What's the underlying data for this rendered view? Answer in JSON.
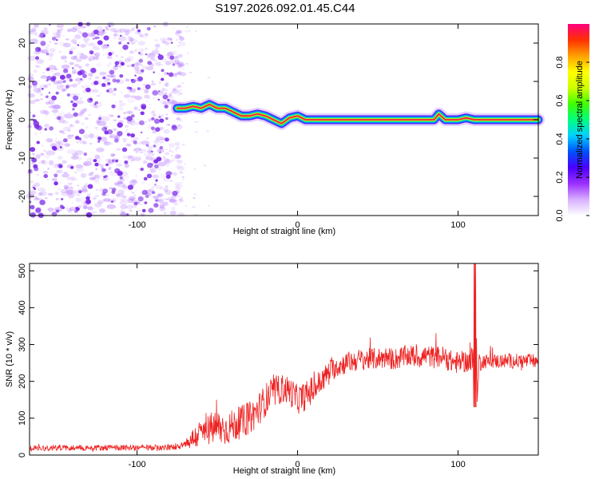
{
  "title": "S197.2026.092.01.45.C44",
  "colors": {
    "snr_line": "#ee2222",
    "ridge_line": "#e8214a",
    "noise_speckle": "#7a28e8",
    "background": "#ffffff"
  },
  "chart_data": [
    {
      "type": "heatmap",
      "xlabel": "Height of straight line (km)",
      "ylabel": "Frequency (Hz)",
      "xlim": [
        -167,
        150
      ],
      "ylim": [
        -25,
        25
      ],
      "x_ticks": [
        -100,
        0,
        100
      ],
      "y_ticks": [
        -20,
        -10,
        0,
        10,
        20
      ],
      "grid": false,
      "colorbar": {
        "label": "Normalized spectral amplitude",
        "range": [
          0,
          1
        ],
        "ticks": [
          0.0,
          0.2,
          0.4,
          0.6,
          0.8
        ],
        "colormap": [
          "#ffffff",
          "#d8b0ff",
          "#9b30ff",
          "#4b00ff",
          "#0050ff",
          "#00d0ff",
          "#00ff80",
          "#40ff00",
          "#d0ff00",
          "#ffff00",
          "#ffa000",
          "#ff3000",
          "#ff0080"
        ]
      },
      "noise_region_x": [
        -167,
        -75
      ],
      "ridge": {
        "x": [
          -75,
          -70,
          -65,
          -60,
          -55,
          -50,
          -45,
          -40,
          -35,
          -30,
          -25,
          -20,
          -15,
          -10,
          -5,
          0,
          5,
          10,
          20,
          40,
          60,
          80,
          85,
          88,
          92,
          96,
          100,
          105,
          110,
          130,
          150
        ],
        "freq": [
          3,
          3,
          3.5,
          3,
          4,
          3,
          3,
          2,
          1,
          1,
          1.5,
          1,
          0,
          -1,
          0.5,
          1,
          0,
          0,
          0,
          0,
          0,
          0,
          0,
          1.5,
          0,
          0,
          0,
          0.5,
          0,
          0,
          0
        ]
      }
    },
    {
      "type": "line",
      "xlabel": "Height of straight line (km)",
      "ylabel": "SNR (10 * v/v)",
      "xlim": [
        -167,
        150
      ],
      "ylim": [
        0,
        520
      ],
      "x_ticks": [
        -100,
        0,
        100
      ],
      "y_ticks": [
        0,
        100,
        200,
        300,
        400,
        500
      ],
      "grid": false,
      "series": [
        {
          "x": [
            -167,
            -150,
            -130,
            -110,
            -90,
            -80,
            -75,
            -70,
            -65,
            -60,
            -55,
            -50,
            -45,
            -40,
            -35,
            -30,
            -25,
            -20,
            -15,
            -10,
            -5,
            0,
            5,
            10,
            15,
            20,
            25,
            30,
            35,
            40,
            45,
            50,
            55,
            60,
            65,
            70,
            75,
            80,
            85,
            90,
            95,
            100,
            105,
            108,
            110,
            111,
            112,
            113,
            115,
            120,
            130,
            140,
            150
          ],
          "y": [
            18,
            20,
            20,
            20,
            20,
            20,
            25,
            30,
            45,
            60,
            70,
            75,
            70,
            80,
            90,
            100,
            120,
            150,
            170,
            180,
            175,
            150,
            160,
            180,
            200,
            230,
            240,
            250,
            255,
            260,
            260,
            262,
            265,
            260,
            265,
            270,
            265,
            270,
            265,
            268,
            255,
            250,
            255,
            250,
            260,
            500,
            140,
            250,
            255,
            255,
            255,
            255,
            255
          ],
          "noise_amp": [
            8,
            8,
            8,
            8,
            8,
            8,
            10,
            15,
            30,
            40,
            45,
            50,
            45,
            45,
            45,
            45,
            45,
            45,
            45,
            40,
            40,
            40,
            40,
            40,
            35,
            30,
            30,
            30,
            30,
            30,
            30,
            30,
            30,
            30,
            30,
            30,
            30,
            30,
            30,
            30,
            30,
            30,
            30,
            40,
            60,
            10,
            10,
            30,
            20,
            20,
            20,
            20,
            20
          ]
        }
      ]
    }
  ]
}
